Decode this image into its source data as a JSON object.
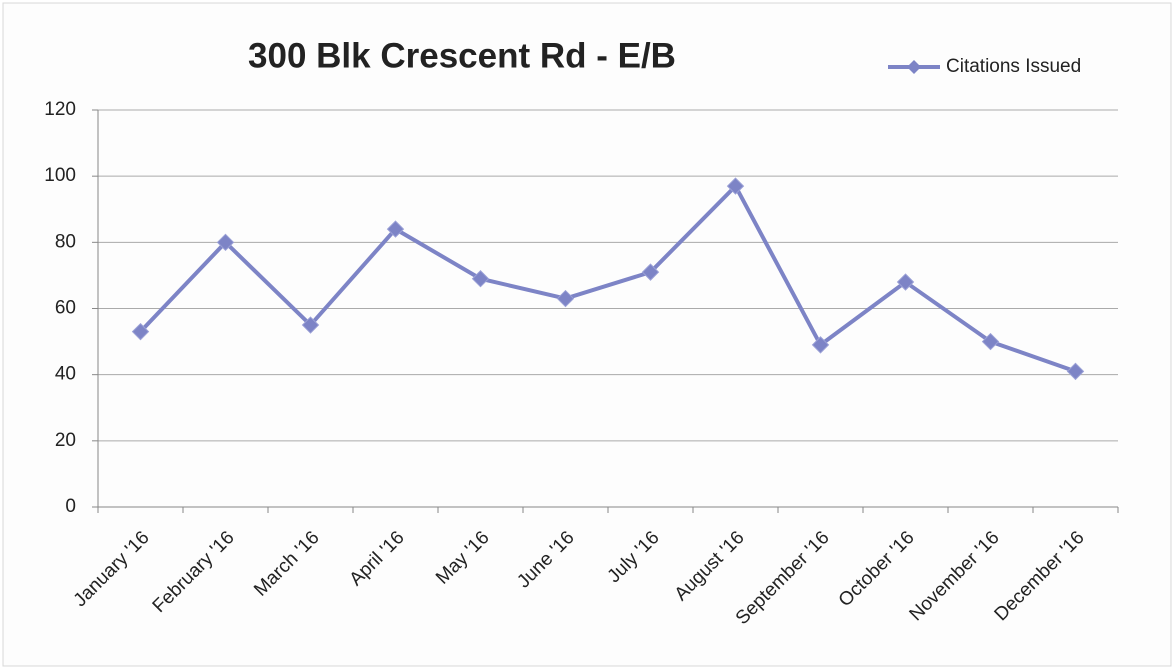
{
  "chart_data": {
    "type": "line",
    "title": "300 Blk Crescent Rd - E/B",
    "categories": [
      "January '16",
      "February '16",
      "March '16",
      "April '16",
      "May '16",
      "June '16",
      "July '16",
      "August '16",
      "September '16",
      "October '16",
      "November '16",
      "December '16"
    ],
    "series": [
      {
        "name": "Citations Issued",
        "color": "#7d84c6",
        "values": [
          53,
          80,
          55,
          84,
          69,
          63,
          71,
          97,
          49,
          68,
          50,
          41
        ]
      }
    ],
    "ylim": [
      0,
      120
    ],
    "yticks": [
      0,
      20,
      40,
      60,
      80,
      100,
      120
    ],
    "grid": true,
    "legend": "top-right"
  }
}
